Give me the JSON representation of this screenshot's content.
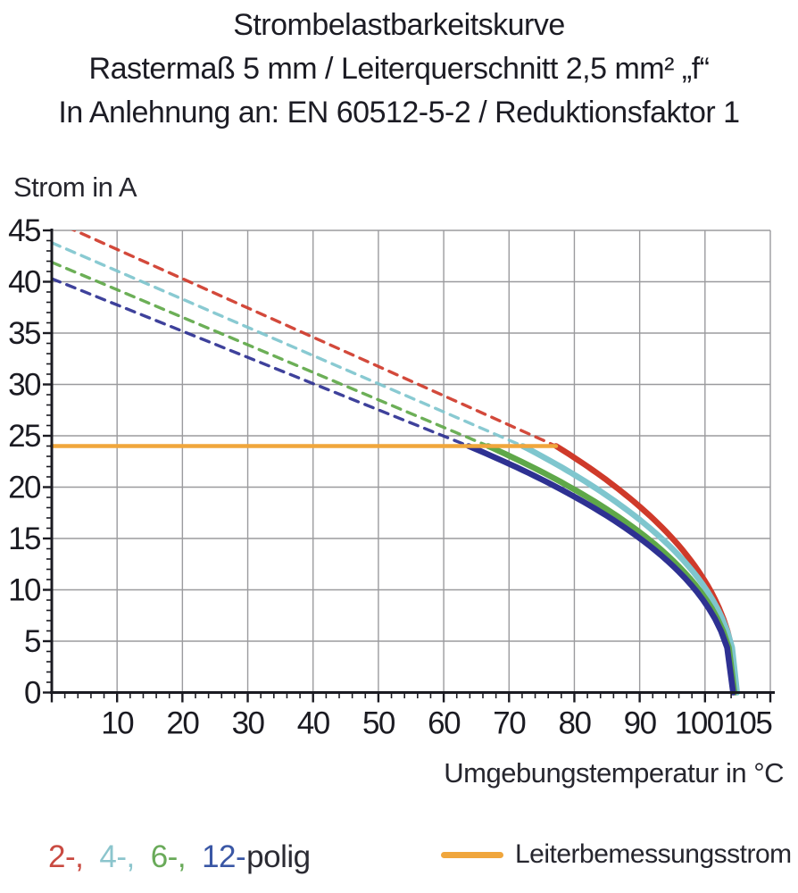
{
  "title_block": {
    "line1": "Strombelastbarkeitskurve",
    "line2": "Rastermaß 5 mm / Leiterquerschnitt 2,5 mm² „f“",
    "line3": "In Anlehnung an: EN 60512-5-2 / Reduktionsfaktor 1"
  },
  "chart_data": {
    "type": "line",
    "title": "Strombelastbarkeitskurve",
    "ylabel": "Strom in A",
    "xlabel": "Umgebungstemperatur in °C",
    "xlim": [
      0,
      110
    ],
    "ylim": [
      0,
      45
    ],
    "x_major_grid_step": 10,
    "y_major_grid_step": 5,
    "x_minor_tick_step": 2,
    "y_minor_tick_step": 1,
    "x_tick_labels": [
      10,
      20,
      30,
      40,
      50,
      60,
      70,
      80,
      90,
      100,
      105
    ],
    "y_tick_labels": [
      45,
      40,
      35,
      30,
      25,
      20,
      15,
      10,
      5,
      0
    ],
    "grid_color": "#9b9b9e",
    "axis_color": "#1b1b22",
    "solid_curve_exponent": 0.45,
    "series": [
      {
        "name": "2-polig",
        "color": "#cf3a2a",
        "start_current_a": 46.0,
        "knee_temp_c": 77.2,
        "knee_current_a": 24,
        "zero_current_temp_c": 104.7
      },
      {
        "name": "4-polig",
        "color": "#7fc6ce",
        "start_current_a": 43.8,
        "knee_temp_c": 72.1,
        "knee_current_a": 24,
        "zero_current_temp_c": 104.9
      },
      {
        "name": "6-polig",
        "color": "#5fa849",
        "start_current_a": 41.9,
        "knee_temp_c": 66.8,
        "knee_current_a": 24,
        "zero_current_temp_c": 104.5
      },
      {
        "name": "12-polig",
        "color": "#2e3192",
        "start_current_a": 40.3,
        "knee_temp_c": 63.8,
        "knee_current_a": 24,
        "zero_current_temp_c": 104.3
      }
    ],
    "reference_line": {
      "label": "Leiterbemessungsstrom",
      "value_a": 24,
      "color": "#f0a63c"
    }
  },
  "legend": {
    "pole_items": [
      {
        "label": "2-,",
        "color": "#c94a41"
      },
      {
        "label": "4-,",
        "color": "#8cc5cd"
      },
      {
        "label": "6-,",
        "color": "#69aa59"
      },
      {
        "label": "12-",
        "color": "#3a57a5"
      }
    ],
    "pole_suffix": "polig",
    "reference_label": "Leiterbemessungsstrom",
    "reference_color": "#f0a63c"
  }
}
